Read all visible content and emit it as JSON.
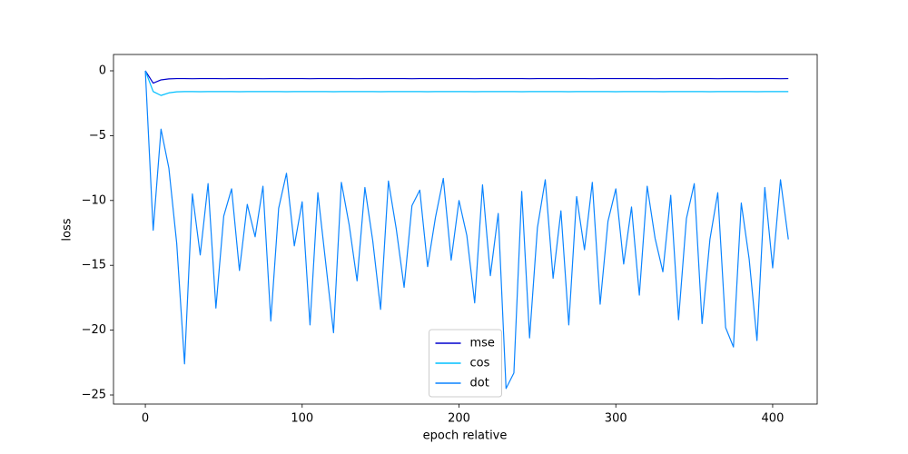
{
  "chart_data": {
    "type": "line",
    "xlabel": "epoch relative",
    "ylabel": "loss",
    "x": [
      0,
      5,
      10,
      15,
      20,
      25,
      30,
      35,
      40,
      45,
      50,
      55,
      60,
      65,
      70,
      75,
      80,
      85,
      90,
      95,
      100,
      105,
      110,
      115,
      120,
      125,
      130,
      135,
      140,
      145,
      150,
      155,
      160,
      165,
      170,
      175,
      180,
      185,
      190,
      195,
      200,
      205,
      210,
      215,
      220,
      225,
      230,
      235,
      240,
      245,
      250,
      255,
      260,
      265,
      270,
      275,
      280,
      285,
      290,
      295,
      300,
      305,
      310,
      315,
      320,
      325,
      330,
      335,
      340,
      345,
      350,
      355,
      360,
      365,
      370,
      375,
      380,
      385,
      390,
      395,
      400,
      405,
      410
    ],
    "series": [
      {
        "name": "mse",
        "color": "#0000cd",
        "values": [
          0,
          -0.95,
          -0.7,
          -0.62,
          -0.6,
          -0.6,
          -0.61,
          -0.6,
          -0.6,
          -0.6,
          -0.61,
          -0.6,
          -0.6,
          -0.6,
          -0.6,
          -0.61,
          -0.6,
          -0.6,
          -0.6,
          -0.6,
          -0.6,
          -0.61,
          -0.6,
          -0.6,
          -0.6,
          -0.6,
          -0.6,
          -0.61,
          -0.6,
          -0.6,
          -0.6,
          -0.6,
          -0.6,
          -0.6,
          -0.61,
          -0.6,
          -0.6,
          -0.6,
          -0.6,
          -0.6,
          -0.6,
          -0.6,
          -0.61,
          -0.6,
          -0.6,
          -0.6,
          -0.6,
          -0.6,
          -0.6,
          -0.61,
          -0.6,
          -0.6,
          -0.6,
          -0.6,
          -0.6,
          -0.6,
          -0.6,
          -0.61,
          -0.6,
          -0.6,
          -0.6,
          -0.6,
          -0.6,
          -0.6,
          -0.6,
          -0.61,
          -0.6,
          -0.6,
          -0.6,
          -0.6,
          -0.6,
          -0.6,
          -0.6,
          -0.61,
          -0.6,
          -0.6,
          -0.6,
          -0.6,
          -0.6,
          -0.6,
          -0.6,
          -0.61,
          -0.6
        ]
      },
      {
        "name": "cos",
        "color": "#00bfff",
        "values": [
          0,
          -1.6,
          -1.9,
          -1.7,
          -1.62,
          -1.6,
          -1.6,
          -1.61,
          -1.6,
          -1.6,
          -1.6,
          -1.6,
          -1.61,
          -1.6,
          -1.6,
          -1.6,
          -1.6,
          -1.6,
          -1.61,
          -1.6,
          -1.6,
          -1.6,
          -1.6,
          -1.6,
          -1.61,
          -1.6,
          -1.6,
          -1.6,
          -1.6,
          -1.6,
          -1.61,
          -1.6,
          -1.6,
          -1.6,
          -1.6,
          -1.6,
          -1.61,
          -1.6,
          -1.6,
          -1.6,
          -1.6,
          -1.6,
          -1.61,
          -1.6,
          -1.6,
          -1.6,
          -1.6,
          -1.6,
          -1.61,
          -1.6,
          -1.6,
          -1.6,
          -1.6,
          -1.6,
          -1.61,
          -1.6,
          -1.6,
          -1.6,
          -1.6,
          -1.6,
          -1.61,
          -1.6,
          -1.6,
          -1.6,
          -1.6,
          -1.6,
          -1.61,
          -1.6,
          -1.6,
          -1.6,
          -1.6,
          -1.6,
          -1.61,
          -1.6,
          -1.6,
          -1.6,
          -1.6,
          -1.6,
          -1.61,
          -1.6,
          -1.6,
          -1.6,
          -1.6
        ]
      },
      {
        "name": "dot",
        "color": "#0a84ff",
        "values": [
          0,
          -12.3,
          -4.5,
          -7.5,
          -13.3,
          -22.6,
          -9.5,
          -14.2,
          -8.7,
          -18.3,
          -11.2,
          -9.1,
          -15.4,
          -10.3,
          -12.8,
          -8.9,
          -19.3,
          -10.6,
          -7.9,
          -13.5,
          -10.1,
          -19.6,
          -9.4,
          -14.8,
          -20.2,
          -8.6,
          -11.9,
          -16.2,
          -9.0,
          -13.1,
          -18.4,
          -8.5,
          -12.2,
          -16.7,
          -10.4,
          -9.2,
          -15.1,
          -11.3,
          -8.3,
          -14.6,
          -10.0,
          -12.7,
          -17.9,
          -8.8,
          -15.8,
          -11.0,
          -24.5,
          -23.3,
          -9.3,
          -20.6,
          -12.1,
          -8.4,
          -16.0,
          -10.8,
          -19.6,
          -9.7,
          -13.8,
          -8.6,
          -18.0,
          -11.6,
          -9.1,
          -14.9,
          -10.5,
          -17.3,
          -8.9,
          -12.9,
          -15.5,
          -9.6,
          -19.2,
          -11.4,
          -8.7,
          -19.5,
          -13.0,
          -9.4,
          -19.8,
          -21.3,
          -10.2,
          -14.5,
          -20.8,
          -9.0,
          -15.2,
          -8.4,
          -13.0
        ]
      }
    ],
    "xlim": [
      -20.3,
      428.4
    ],
    "xticks": [
      0,
      100,
      200,
      300,
      400
    ],
    "ylim": [
      -25.7,
      1.26
    ],
    "yticks": [
      {
        "value": -25,
        "label": "−25"
      },
      {
        "value": -20,
        "label": "−20"
      },
      {
        "value": -15,
        "label": "−15"
      },
      {
        "value": -10,
        "label": "−10"
      },
      {
        "value": -5,
        "label": "−5"
      },
      0
    ],
    "legend": "lower center"
  }
}
